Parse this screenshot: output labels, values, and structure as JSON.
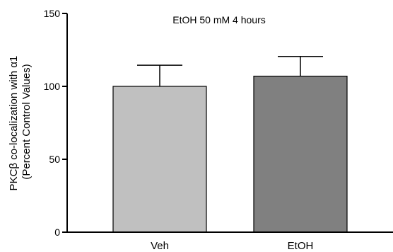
{
  "chart_data": {
    "type": "bar",
    "title": "EtOH 50 mM 4 hours",
    "ylabel_line1": "PKCβ co-localization with α1",
    "ylabel_line2": "(Percent Control Values)",
    "xlabel": "",
    "categories": [
      "Veh",
      "EtOH"
    ],
    "values": [
      100,
      107
    ],
    "errors": [
      14.5,
      13.5
    ],
    "bar_colors": [
      "#c0c0c0",
      "#808080"
    ],
    "ylim": [
      0,
      150
    ],
    "yticks": [
      0,
      50,
      100,
      150
    ],
    "ytick_labels": [
      "0",
      "50",
      "100",
      "150"
    ],
    "grid": false,
    "legend": "none"
  }
}
